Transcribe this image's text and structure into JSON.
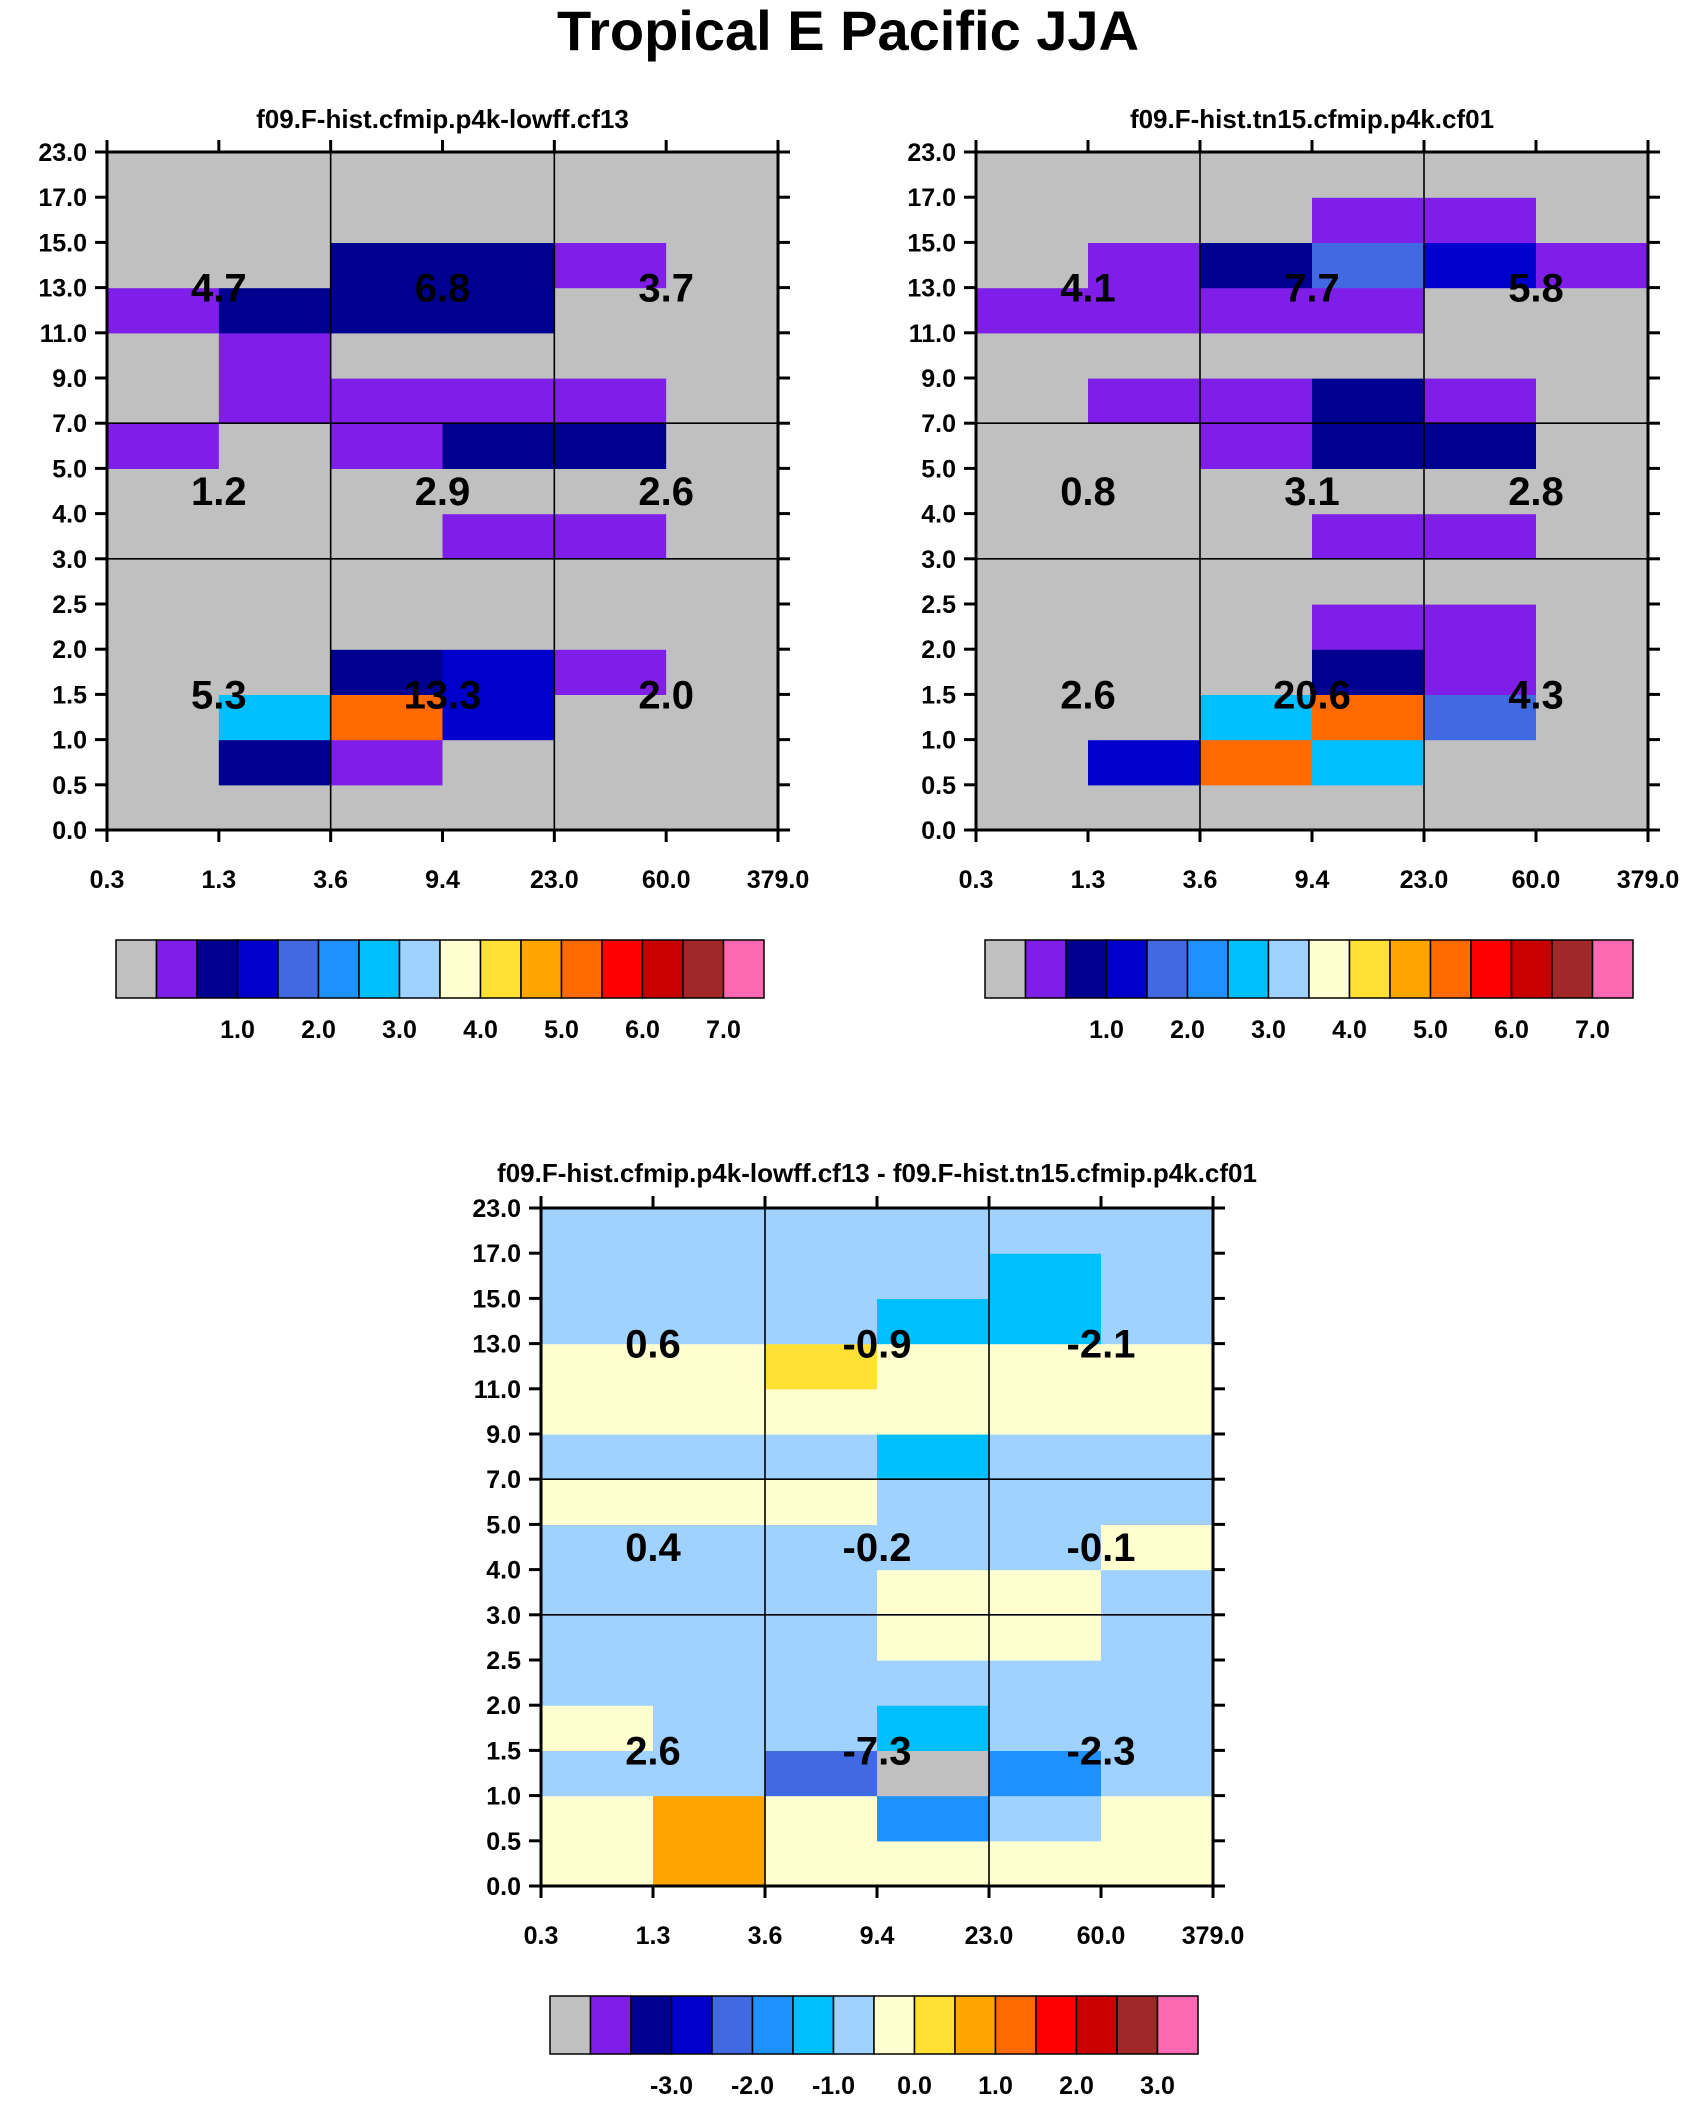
{
  "title": "Tropical E Pacific JJA",
  "chart_data": [
    {
      "type": "heatmap",
      "title": "f09.F-hist.cfmip.p4k-lowff.cf13",
      "x_ticks": [
        "0.3",
        "1.3",
        "3.6",
        "9.4",
        "23.0",
        "60.0",
        "379.0"
      ],
      "y_ticks": [
        "0.0",
        "0.5",
        "1.0",
        "1.5",
        "2.0",
        "2.5",
        "3.0",
        "4.0",
        "5.0",
        "7.0",
        "9.0",
        "11.0",
        "13.0",
        "15.0",
        "17.0",
        "23.0"
      ],
      "cells": [
        [
          0,
          0,
          0,
          0,
          0,
          0
        ],
        [
          0,
          2,
          1,
          0,
          0,
          0
        ],
        [
          0,
          6,
          11,
          3,
          0,
          0
        ],
        [
          0,
          0,
          2,
          3,
          1,
          0
        ],
        [
          0,
          0,
          0,
          0,
          0,
          0
        ],
        [
          0,
          0,
          0,
          0,
          0,
          0
        ],
        [
          0,
          0,
          0,
          1,
          1,
          0
        ],
        [
          0,
          0,
          0,
          0,
          0,
          0
        ],
        [
          1,
          0,
          1,
          2,
          2,
          0
        ],
        [
          0,
          1,
          1,
          1,
          1,
          0
        ],
        [
          0,
          1,
          0,
          0,
          0,
          0
        ],
        [
          1,
          2,
          2,
          2,
          0,
          0
        ],
        [
          0,
          0,
          2,
          2,
          1,
          0
        ],
        [
          0,
          0,
          0,
          0,
          0,
          0
        ],
        [
          0,
          0,
          0,
          0,
          0,
          0
        ]
      ],
      "group_values": [
        {
          "row": 2,
          "col": 0,
          "value": "4.7"
        },
        {
          "row": 2,
          "col": 1,
          "value": "6.8"
        },
        {
          "row": 2,
          "col": 2,
          "value": "3.7"
        },
        {
          "row": 1,
          "col": 0,
          "value": "1.2"
        },
        {
          "row": 1,
          "col": 1,
          "value": "2.9"
        },
        {
          "row": 1,
          "col": 2,
          "value": "2.6"
        },
        {
          "row": 0,
          "col": 0,
          "value": "5.3"
        },
        {
          "row": 0,
          "col": 1,
          "value": "13.3"
        },
        {
          "row": 0,
          "col": 2,
          "value": "2.0"
        }
      ],
      "colorbar": {
        "colors": [
          "#c0c0c0",
          "#7f1ee8",
          "#000090",
          "#0000cd",
          "#4169e1",
          "#1e90ff",
          "#00bfff",
          "#a0d2ff",
          "#ffffd0",
          "#ffe135",
          "#ffa500",
          "#ff6a00",
          "#ff0000",
          "#c80000",
          "#a02828",
          "#ff69b4"
        ],
        "labels": [
          "1.0",
          "2.0",
          "3.0",
          "4.0",
          "5.0",
          "6.0",
          "7.0"
        ]
      }
    },
    {
      "type": "heatmap",
      "title": "f09.F-hist.tn15.cfmip.p4k.cf01",
      "x_ticks": [
        "0.3",
        "1.3",
        "3.6",
        "9.4",
        "23.0",
        "60.0",
        "379.0"
      ],
      "y_ticks": [
        "0.0",
        "0.5",
        "1.0",
        "1.5",
        "2.0",
        "2.5",
        "3.0",
        "4.0",
        "5.0",
        "7.0",
        "9.0",
        "11.0",
        "13.0",
        "15.0",
        "17.0",
        "23.0"
      ],
      "cells": [
        [
          0,
          0,
          0,
          0,
          0,
          0
        ],
        [
          0,
          3,
          11,
          6,
          0,
          0
        ],
        [
          0,
          0,
          6,
          11,
          4,
          0
        ],
        [
          0,
          0,
          0,
          2,
          1,
          0
        ],
        [
          0,
          0,
          0,
          1,
          1,
          0
        ],
        [
          0,
          0,
          0,
          0,
          0,
          0
        ],
        [
          0,
          0,
          0,
          1,
          1,
          0
        ],
        [
          0,
          0,
          0,
          0,
          0,
          0
        ],
        [
          0,
          0,
          1,
          2,
          2,
          0
        ],
        [
          0,
          1,
          1,
          2,
          1,
          0
        ],
        [
          0,
          0,
          0,
          0,
          0,
          0
        ],
        [
          1,
          1,
          1,
          1,
          0,
          0
        ],
        [
          0,
          1,
          2,
          4,
          3,
          1
        ],
        [
          0,
          0,
          0,
          1,
          1,
          0
        ],
        [
          0,
          0,
          0,
          0,
          0,
          0
        ]
      ],
      "group_values": [
        {
          "row": 2,
          "col": 0,
          "value": "4.1"
        },
        {
          "row": 2,
          "col": 1,
          "value": "7.7"
        },
        {
          "row": 2,
          "col": 2,
          "value": "5.8"
        },
        {
          "row": 1,
          "col": 0,
          "value": "0.8"
        },
        {
          "row": 1,
          "col": 1,
          "value": "3.1"
        },
        {
          "row": 1,
          "col": 2,
          "value": "2.8"
        },
        {
          "row": 0,
          "col": 0,
          "value": "2.6"
        },
        {
          "row": 0,
          "col": 1,
          "value": "20.6"
        },
        {
          "row": 0,
          "col": 2,
          "value": "4.3"
        }
      ],
      "colorbar": {
        "colors": [
          "#c0c0c0",
          "#7f1ee8",
          "#000090",
          "#0000cd",
          "#4169e1",
          "#1e90ff",
          "#00bfff",
          "#a0d2ff",
          "#ffffd0",
          "#ffe135",
          "#ffa500",
          "#ff6a00",
          "#ff0000",
          "#c80000",
          "#a02828",
          "#ff69b4"
        ],
        "labels": [
          "1.0",
          "2.0",
          "3.0",
          "4.0",
          "5.0",
          "6.0",
          "7.0"
        ]
      }
    },
    {
      "type": "heatmap",
      "title": "f09.F-hist.cfmip.p4k-lowff.cf13 - f09.F-hist.tn15.cfmip.p4k.cf01",
      "x_ticks": [
        "0.3",
        "1.3",
        "3.6",
        "9.4",
        "23.0",
        "60.0",
        "379.0"
      ],
      "y_ticks": [
        "0.0",
        "0.5",
        "1.0",
        "1.5",
        "2.0",
        "2.5",
        "3.0",
        "4.0",
        "5.0",
        "7.0",
        "9.0",
        "11.0",
        "13.0",
        "15.0",
        "17.0",
        "23.0"
      ],
      "cells": [
        [
          8,
          10,
          8,
          8,
          8,
          8
        ],
        [
          8,
          10,
          8,
          5,
          7,
          8
        ],
        [
          7,
          7,
          4,
          0,
          5,
          7
        ],
        [
          8,
          7,
          7,
          6,
          7,
          7
        ],
        [
          7,
          7,
          7,
          7,
          7,
          7
        ],
        [
          7,
          7,
          7,
          8,
          8,
          7
        ],
        [
          7,
          7,
          7,
          8,
          8,
          7
        ],
        [
          7,
          7,
          7,
          7,
          7,
          8
        ],
        [
          8,
          8,
          8,
          7,
          7,
          7
        ],
        [
          7,
          7,
          7,
          6,
          7,
          7
        ],
        [
          8,
          8,
          8,
          8,
          8,
          8
        ],
        [
          8,
          8,
          9,
          8,
          8,
          8
        ],
        [
          7,
          7,
          7,
          6,
          6,
          7
        ],
        [
          7,
          7,
          7,
          7,
          6,
          7
        ],
        [
          7,
          7,
          7,
          7,
          7,
          7
        ]
      ],
      "group_values": [
        {
          "row": 2,
          "col": 0,
          "value": "0.6"
        },
        {
          "row": 2,
          "col": 1,
          "value": "-0.9"
        },
        {
          "row": 2,
          "col": 2,
          "value": "-2.1"
        },
        {
          "row": 1,
          "col": 0,
          "value": "0.4"
        },
        {
          "row": 1,
          "col": 1,
          "value": "-0.2"
        },
        {
          "row": 1,
          "col": 2,
          "value": "-0.1"
        },
        {
          "row": 0,
          "col": 0,
          "value": "2.6"
        },
        {
          "row": 0,
          "col": 1,
          "value": "-7.3"
        },
        {
          "row": 0,
          "col": 2,
          "value": "-2.3"
        }
      ],
      "colorbar": {
        "colors": [
          "#c0c0c0",
          "#7f1ee8",
          "#000090",
          "#0000cd",
          "#4169e1",
          "#1e90ff",
          "#00bfff",
          "#a0d2ff",
          "#ffffd0",
          "#ffe135",
          "#ffa500",
          "#ff6a00",
          "#ff0000",
          "#c80000",
          "#a02828",
          "#ff69b4"
        ],
        "labels": [
          "-3.0",
          "-2.0",
          "-1.0",
          "0.0",
          "1.0",
          "2.0",
          "3.0"
        ]
      }
    }
  ]
}
